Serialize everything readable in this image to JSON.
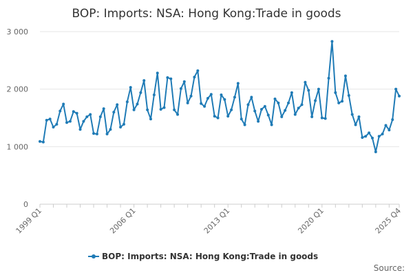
{
  "chart_data": {
    "type": "line",
    "title": "BOP: Imports: NSA: Hong Kong:Trade in goods",
    "source_label": "Source:",
    "legend": {
      "placement": "bottom-center",
      "label": "BOP: Imports: NSA: Hong Kong:Trade in goods"
    },
    "series_color": "#1f7bb6",
    "grid": true,
    "ylim": [
      0,
      3000
    ],
    "yticks": [
      0,
      1000,
      2000,
      3000
    ],
    "ytick_labels": [
      "0",
      "1 000",
      "2 000",
      "3 000"
    ],
    "xticks": [
      {
        "index": 0,
        "label": "1999 Q1"
      },
      {
        "index": 28,
        "label": "2006 Q1"
      },
      {
        "index": 56,
        "label": "2013 Q1"
      },
      {
        "index": 84,
        "label": "2020 Q1"
      },
      {
        "index": 107,
        "label": "2025 Q4"
      }
    ],
    "series": [
      {
        "name": "BOP: Imports: NSA: Hong Kong:Trade in goods",
        "start": "1999 Q1",
        "frequency": "quarterly",
        "values": [
          1090,
          1080,
          1460,
          1480,
          1340,
          1390,
          1620,
          1740,
          1420,
          1440,
          1610,
          1580,
          1300,
          1440,
          1520,
          1560,
          1230,
          1220,
          1520,
          1660,
          1220,
          1300,
          1600,
          1730,
          1340,
          1390,
          1780,
          2030,
          1640,
          1740,
          1940,
          2150,
          1640,
          1480,
          1900,
          2280,
          1650,
          1680,
          2200,
          2180,
          1640,
          1560,
          2010,
          2130,
          1760,
          1880,
          2210,
          2320,
          1750,
          1700,
          1840,
          1910,
          1530,
          1500,
          1900,
          1820,
          1530,
          1640,
          1860,
          2100,
          1480,
          1380,
          1730,
          1860,
          1620,
          1440,
          1650,
          1700,
          1550,
          1380,
          1830,
          1760,
          1520,
          1630,
          1760,
          1940,
          1560,
          1670,
          1730,
          2120,
          1980,
          1520,
          1800,
          2000,
          1500,
          1490,
          2190,
          2830,
          1940,
          1760,
          1790,
          2230,
          1890,
          1560,
          1380,
          1520,
          1160,
          1180,
          1240,
          1150,
          910,
          1180,
          1220,
          1370,
          1290,
          1470,
          2000,
          1880
        ]
      }
    ]
  }
}
